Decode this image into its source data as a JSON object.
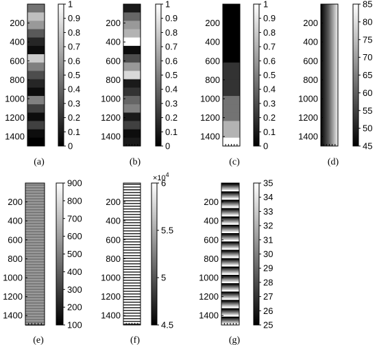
{
  "chart_data": [
    {
      "type": "heatmap",
      "caption": "(a)",
      "yticks": [
        200,
        400,
        600,
        800,
        1000,
        1200,
        1400
      ],
      "ylim": [
        0,
        1500
      ],
      "clim": [
        0,
        1
      ],
      "cbar_ticks": [
        "0",
        "0.1",
        "0.2",
        "0.3",
        "0.4",
        "0.5",
        "0.6",
        "0.7",
        "0.8",
        "0.9",
        "1"
      ],
      "pattern": "blocks",
      "row_values": [
        0.45,
        0.75,
        0.6,
        0.35,
        0.15,
        0.05,
        0.8,
        0.5,
        0.3,
        0.15,
        0.05,
        0.5,
        0.25,
        0.05,
        0.25,
        0.05,
        0.0
      ]
    },
    {
      "type": "heatmap",
      "caption": "(b)",
      "yticks": [
        200,
        400,
        600,
        800,
        1000,
        1200,
        1400
      ],
      "ylim": [
        0,
        1500
      ],
      "clim": [
        0,
        1
      ],
      "cbar_ticks": [
        "0",
        "0.1",
        "0.2",
        "0.3",
        "0.4",
        "0.5",
        "0.6",
        "0.7",
        "0.8",
        "0.9",
        "1"
      ],
      "pattern": "blocks",
      "row_values": [
        0.1,
        0.4,
        0.6,
        0.7,
        1.0,
        0.05,
        0.3,
        0.6,
        0.85,
        0.1,
        0.2,
        0.4,
        0.5,
        0.1,
        0.25,
        0.05,
        0.1
      ]
    },
    {
      "type": "heatmap",
      "caption": "(c)",
      "yticks": [
        200,
        400,
        600,
        800,
        1000,
        1200,
        1400
      ],
      "ylim": [
        0,
        1500
      ],
      "clim": [
        0,
        1
      ],
      "cbar_ticks": [
        "0",
        "0.1",
        "0.2",
        "0.3",
        "0.4",
        "0.5",
        "0.6",
        "0.7",
        "0.8",
        "0.9",
        "1"
      ],
      "pattern": "blocks",
      "row_values": [
        0.0,
        0.0,
        0.0,
        0.0,
        0.0,
        0.0,
        0.0,
        0.2,
        0.2,
        0.2,
        0.2,
        0.45,
        0.45,
        0.45,
        0.7,
        0.7,
        1.0
      ]
    },
    {
      "type": "heatmap",
      "caption": "(d)",
      "yticks": [
        200,
        400,
        600,
        800,
        1000,
        1200,
        1400
      ],
      "ylim": [
        0,
        1500
      ],
      "clim": [
        45,
        85
      ],
      "cbar_ticks": [
        "45",
        "50",
        "55",
        "60",
        "65",
        "70",
        "75",
        "80",
        "85"
      ],
      "pattern": "column_gradient"
    },
    {
      "type": "heatmap",
      "caption": "(e)",
      "yticks": [
        200,
        400,
        600,
        800,
        1000,
        1200,
        1400
      ],
      "ylim": [
        0,
        1500
      ],
      "clim": [
        100,
        900
      ],
      "cbar_ticks": [
        "100",
        "200",
        "300",
        "400",
        "500",
        "600",
        "700",
        "800",
        "900"
      ],
      "pattern": "fine_stripes"
    },
    {
      "type": "heatmap",
      "caption": "(f)",
      "yticks": [
        200,
        400,
        600,
        800,
        1000,
        1200,
        1400
      ],
      "ylim": [
        0,
        1500
      ],
      "clim": [
        4.5,
        6
      ],
      "cbar_ticks": [
        "4.5",
        "5",
        "5.5",
        "6"
      ],
      "cbar_multiplier": "×10",
      "cbar_multiplier_exp": "4",
      "pattern": "horizontal_stripes"
    },
    {
      "type": "heatmap",
      "caption": "(g)",
      "yticks": [
        200,
        400,
        600,
        800,
        1000,
        1200,
        1400
      ],
      "ylim": [
        0,
        1500
      ],
      "clim": [
        25,
        35
      ],
      "cbar_ticks": [
        "25",
        "26",
        "27",
        "28",
        "29",
        "30",
        "31",
        "32",
        "33",
        "34",
        "35"
      ],
      "pattern": "periodic_gradient",
      "periods": 17
    }
  ]
}
